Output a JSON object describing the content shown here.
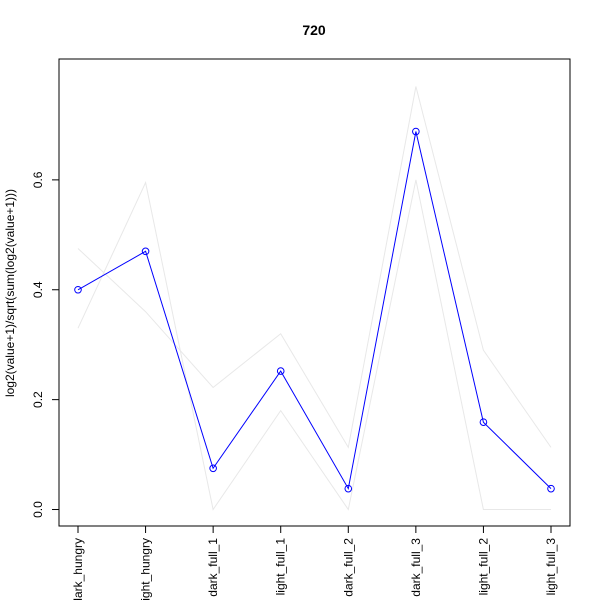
{
  "chart_data": {
    "type": "line",
    "title": "720",
    "xlabel": "",
    "ylabel": "log2(value+1)/sqrt(sum(log2(value+1)))",
    "categories": [
      "dark_hungry",
      "light_hungry",
      "dark_full_1",
      "light_full_1",
      "dark_full_2",
      "dark_full_3",
      "light_full_2",
      "light_full_3"
    ],
    "ylim": [
      -0.03,
      0.82
    ],
    "yticks": [
      0.0,
      0.2,
      0.4,
      0.6
    ],
    "ytick_labels": [
      "0.0",
      "0.2",
      "0.4",
      "0.6"
    ],
    "grid": false,
    "legend": "none",
    "series": [
      {
        "values": [
          0.4,
          0.47,
          0.075,
          0.252,
          0.038,
          0.688,
          0.159,
          0.038
        ],
        "color": "#0000ff",
        "markers": "open-circle"
      },
      {
        "values": [
          0.475,
          0.36,
          0.222,
          0.32,
          0.113,
          0.77,
          0.29,
          0.113
        ],
        "color": "#e8e8e8",
        "markers": "none"
      },
      {
        "values": [
          0.33,
          0.595,
          0.0,
          0.18,
          0.0,
          0.6,
          0.0,
          0.0
        ],
        "color": "#e8e8e8",
        "markers": "none"
      }
    ]
  }
}
